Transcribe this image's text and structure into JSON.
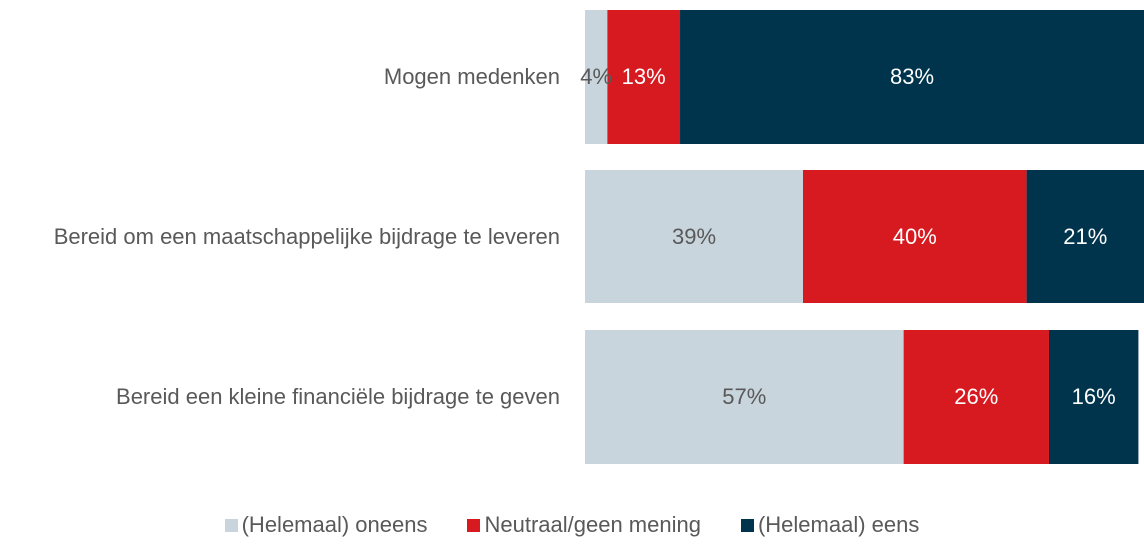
{
  "chart_data": {
    "type": "stacked-bar-horizontal",
    "categories": [
      "Mogen medenken",
      "Bereid om een maatschappelijke bijdrage te leveren",
      "Bereid een kleine financiële bijdrage te geven"
    ],
    "series": [
      {
        "name": "(Helemaal) oneens",
        "color": "#c9d5dd",
        "values": [
          4,
          39,
          57
        ],
        "value_labels": [
          "4%",
          "39%",
          "57%"
        ]
      },
      {
        "name": "Neutraal/geen mening",
        "color": "#d71920",
        "values": [
          13,
          40,
          26
        ],
        "value_labels": [
          "13%",
          "40%",
          "26%"
        ]
      },
      {
        "name": "(Helemaal) eens",
        "color": "#00344d",
        "values": [
          83,
          21,
          16
        ],
        "value_labels": [
          "83%",
          "21%",
          "16%"
        ]
      }
    ],
    "xlim": [
      0,
      100
    ],
    "legend": "bottom"
  }
}
